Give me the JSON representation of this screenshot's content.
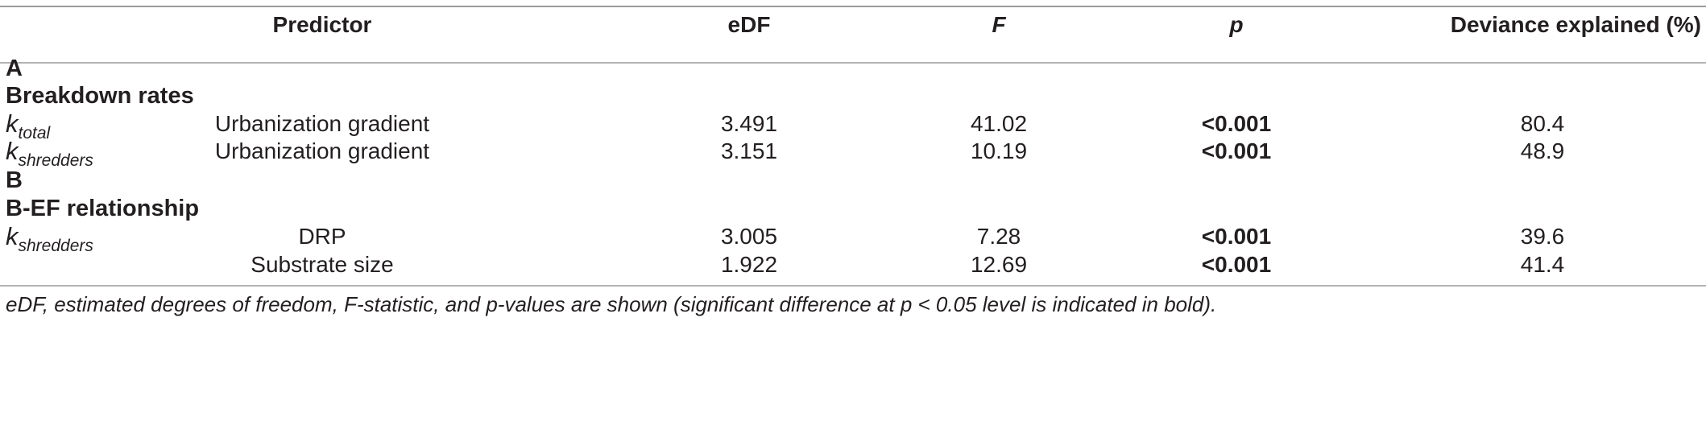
{
  "table": {
    "headers": {
      "group": "",
      "predictor": "Predictor",
      "edf": "eDF",
      "f": "F",
      "p": "p",
      "deviance": "Deviance explained (%)"
    },
    "section_a": {
      "letter": "A",
      "title": "Breakdown rates",
      "rows": [
        {
          "k_base": "k",
          "k_sub": "total",
          "predictor": "Urbanization gradient",
          "edf": "3.491",
          "f": "41.02",
          "p": "<0.001",
          "deviance": "80.4"
        },
        {
          "k_base": "k",
          "k_sub": "shredders",
          "predictor": "Urbanization gradient",
          "edf": "3.151",
          "f": "10.19",
          "p": "<0.001",
          "deviance": "48.9"
        }
      ]
    },
    "section_b": {
      "letter": "B",
      "title": "B-EF relationship",
      "rows": [
        {
          "k_base": "k",
          "k_sub": "shredders",
          "predictor": "DRP",
          "edf": "3.005",
          "f": "7.28",
          "p": "<0.001",
          "deviance": "39.6"
        },
        {
          "k_base": "",
          "k_sub": "",
          "predictor": "Substrate size",
          "edf": "1.922",
          "f": "12.69",
          "p": "<0.001",
          "deviance": "41.4"
        }
      ]
    }
  },
  "footnote": "eDF, estimated degrees of freedom, F-statistic, and p-values are shown (significant difference at p < 0.05 level is indicated in bold)."
}
